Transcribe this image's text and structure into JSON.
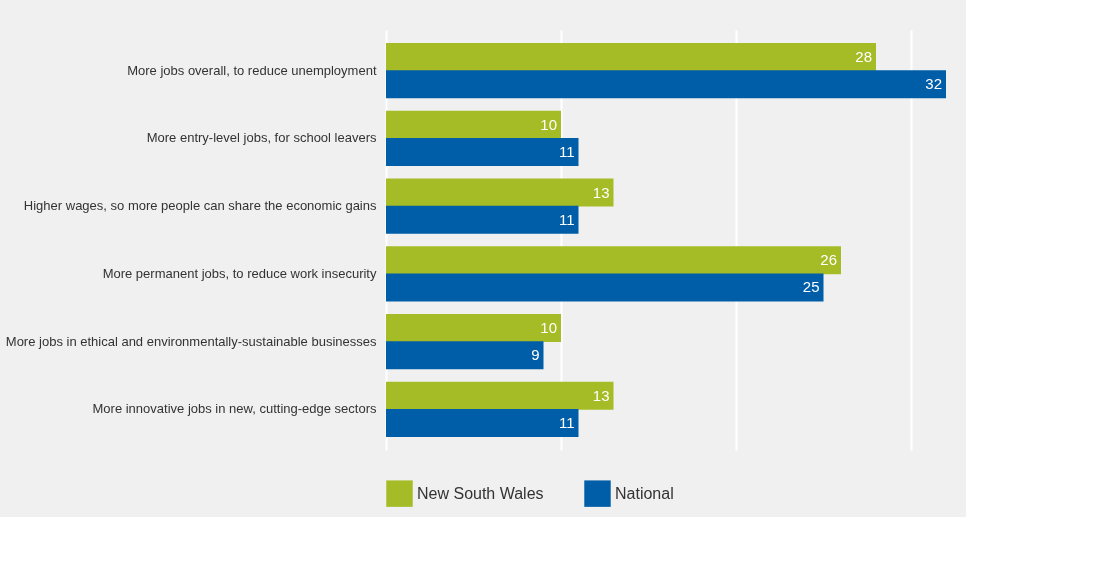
{
  "chart_data": {
    "type": "bar",
    "orientation": "horizontal",
    "categories": [
      "More jobs overall, to reduce unemployment",
      "More entry-level jobs, for school leavers",
      "Higher wages, so more people can share the economic gains",
      "More permanent jobs, to reduce work insecurity",
      "More jobs in ethical and environmentally-sustainable businesses",
      "More innovative jobs in new, cutting-edge sectors"
    ],
    "series": [
      {
        "name": "New South Wales",
        "color": "#a5bc27",
        "values": [
          28,
          10,
          13,
          26,
          10,
          13
        ]
      },
      {
        "name": "National",
        "color": "#005ea8",
        "values": [
          32,
          11,
          11,
          25,
          9,
          11
        ]
      }
    ],
    "xticks": [
      {
        "value": 0,
        "label": null
      },
      {
        "value": 10,
        "label": null
      },
      {
        "value": 20,
        "label": null
      },
      {
        "value": 30,
        "label": null
      }
    ],
    "tick_labels": "y",
    "grid": "x",
    "data_labels": true,
    "legend": "bottom"
  }
}
